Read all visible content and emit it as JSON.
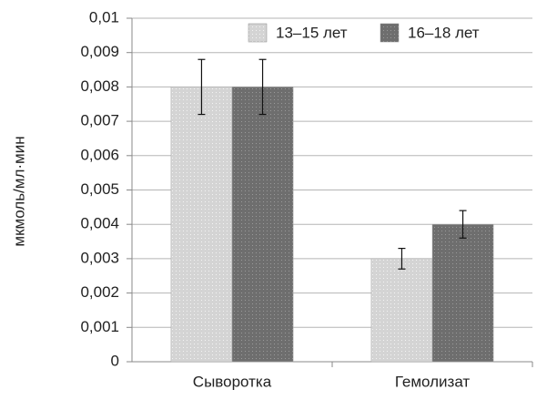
{
  "chart_data": {
    "type": "bar",
    "y_label": "мкмоль/мл·мин",
    "categories": [
      "Сыворотка",
      "Гемолизат"
    ],
    "series": [
      {
        "name": "13–15 лет",
        "color": "#d4d4d4",
        "values": [
          0.008,
          0.003
        ],
        "errors": [
          0.0008,
          0.0003
        ]
      },
      {
        "name": "16–18 лет",
        "color": "#6e6e6e",
        "values": [
          0.008,
          0.004
        ],
        "errors": [
          0.0008,
          0.0004
        ]
      }
    ],
    "ylim": [
      0,
      0.01
    ],
    "yticks": [
      0,
      {
        "value": 0.001,
        "label": "0,001"
      },
      {
        "value": 0.002,
        "label": "0,002"
      },
      {
        "value": 0.003,
        "label": "0,003"
      },
      {
        "value": 0.004,
        "label": "0,004"
      },
      {
        "value": 0.005,
        "label": "0,005"
      },
      {
        "value": 0.006,
        "label": "0,006"
      },
      {
        "value": 0.007,
        "label": "0,007"
      },
      {
        "value": 0.008,
        "label": "0,008"
      },
      {
        "value": 0.009,
        "label": "0,009"
      },
      {
        "value": 0.01,
        "label": "0,01"
      }
    ],
    "grid": true,
    "legend": "top-right"
  }
}
